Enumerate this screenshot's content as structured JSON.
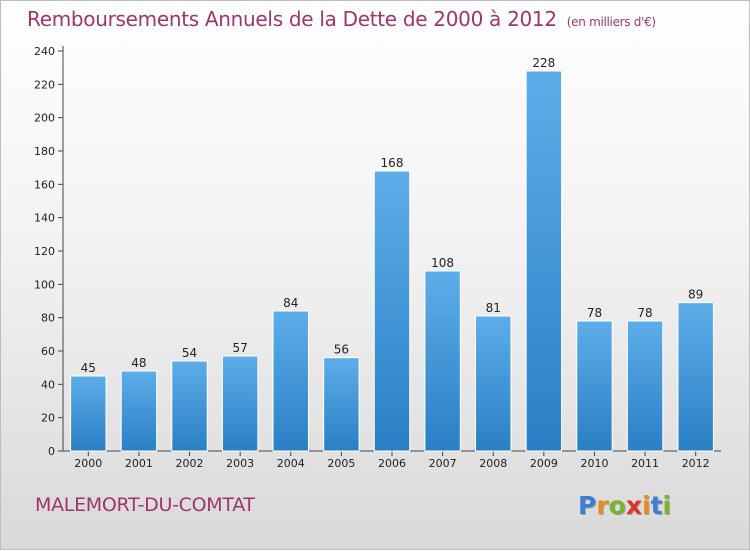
{
  "header": {
    "title": "Remboursements Annuels de la Dette de 2000 à 2012",
    "unit": "(en milliers d'€)"
  },
  "footer": {
    "city": "MALEMORT-DU-COMTAT",
    "logo": "Proxiti"
  },
  "colors": {
    "bar_light": "#5dade9",
    "bar_dark": "#2a7fc4",
    "title": "#a0356a",
    "logo_letters": [
      "#3a7fd1",
      "#e98a1f",
      "#78b52b",
      "#e0332c",
      "#e98a1f",
      "#3a7fd1",
      "#78b52b"
    ]
  },
  "chart_data": {
    "type": "bar",
    "title": "Remboursements Annuels de la Dette de 2000 à 2012",
    "xlabel": "",
    "ylabel": "",
    "categories": [
      "2000",
      "2001",
      "2002",
      "2003",
      "2004",
      "2005",
      "2006",
      "2007",
      "2008",
      "2009",
      "2010",
      "2011",
      "2012"
    ],
    "values": [
      45,
      48,
      54,
      57,
      84,
      56,
      168,
      108,
      81,
      228,
      78,
      78,
      89
    ],
    "ylim": [
      0,
      240
    ],
    "yticks": [
      0,
      20,
      40,
      60,
      80,
      100,
      120,
      140,
      160,
      180,
      200,
      220,
      240
    ],
    "grid": false,
    "legend": "none"
  }
}
